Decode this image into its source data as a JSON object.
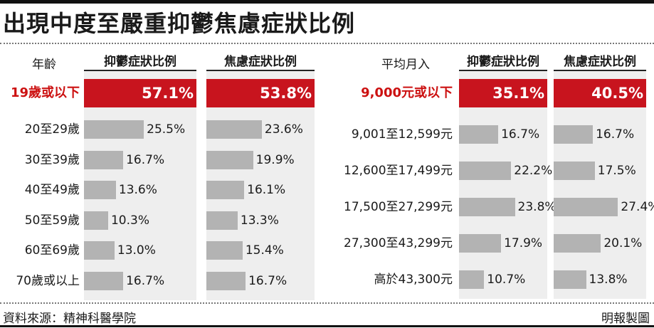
{
  "title": "出現中度至嚴重抑鬱焦慮症狀比例",
  "source": "資料來源：精神科醫學院",
  "credit": "明報製圖",
  "chart_data": [
    {
      "type": "bar",
      "category_header": "年齡",
      "categories": [
        "19歲或以下",
        "20至29歲",
        "30至39歲",
        "40至49歲",
        "50至59歲",
        "60至69歲",
        "70歲或以上"
      ],
      "highlight_index": 0,
      "series": [
        {
          "name": "抑鬱症狀比例",
          "values": [
            57.1,
            25.5,
            16.7,
            13.6,
            10.3,
            13.0,
            16.7
          ],
          "labels": [
            "57.1%",
            "25.5%",
            "16.7%",
            "13.6%",
            "10.3%",
            "13.0%",
            "16.7%"
          ]
        },
        {
          "name": "焦慮症狀比例",
          "values": [
            53.8,
            23.6,
            19.9,
            16.1,
            13.3,
            15.4,
            16.7
          ],
          "labels": [
            "53.8%",
            "23.6%",
            "19.9%",
            "16.1%",
            "13.3%",
            "15.4%",
            "16.7%"
          ]
        }
      ],
      "unit": "%",
      "highlight_color": "#c8141e",
      "bar_color": "#b3b3b3",
      "column_bg": "#eeeeee"
    },
    {
      "type": "bar",
      "category_header": "平均月入",
      "categories": [
        "9,000元或以下",
        "9,001至12,599元",
        "12,600至17,499元",
        "17,500至27,299元",
        "27,300至43,299元",
        "高於43,300元"
      ],
      "highlight_index": 0,
      "series": [
        {
          "name": "抑鬱症狀比例",
          "values": [
            35.1,
            16.7,
            22.2,
            23.8,
            17.9,
            10.7
          ],
          "labels": [
            "35.1%",
            "16.7%",
            "22.2%",
            "23.8%",
            "17.9%",
            "10.7%"
          ]
        },
        {
          "name": "焦慮症狀比例",
          "values": [
            40.5,
            16.7,
            17.5,
            27.4,
            20.1,
            13.8
          ],
          "labels": [
            "40.5%",
            "16.7%",
            "17.5%",
            "27.4%",
            "20.1%",
            "13.8%"
          ]
        }
      ],
      "unit": "%",
      "highlight_color": "#c8141e",
      "bar_color": "#b3b3b3",
      "column_bg": "#eeeeee"
    }
  ]
}
